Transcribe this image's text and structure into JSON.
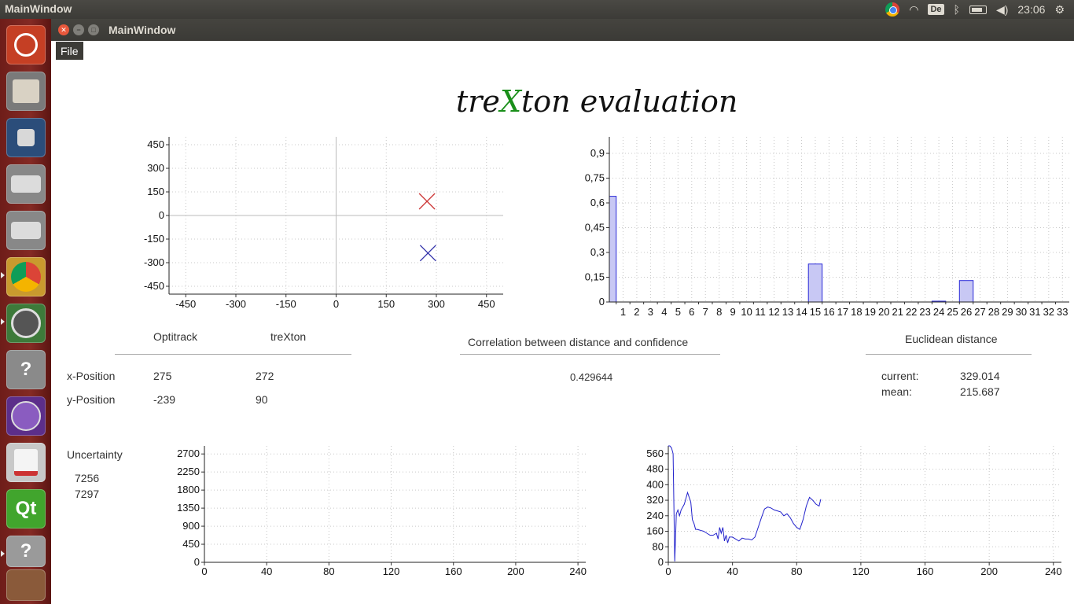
{
  "system": {
    "app_title": "MainWindow",
    "keyboard_layout": "De",
    "clock": "23:06"
  },
  "window": {
    "title": "MainWindow"
  },
  "menu": {
    "file": "File"
  },
  "heading": {
    "part1": "tre",
    "part2": "X",
    "part3": "ton evaluation"
  },
  "table": {
    "col1": "Optitrack",
    "col2": "treXton",
    "x_label": "x-Position",
    "y_label": "y-Position",
    "opti_x": "275",
    "opti_y": "-239",
    "trex_x": "272",
    "trex_y": "90"
  },
  "correlation": {
    "label": "Correlation between distance and confidence",
    "value": "0.429644"
  },
  "euclid": {
    "title": "Euclidean distance",
    "current_label": "current:",
    "current_value": "329.014",
    "mean_label": "mean:",
    "mean_value": "215.687"
  },
  "uncertainty": {
    "label": "Uncertainty",
    "v1": "7256",
    "v2": "7297"
  },
  "chart_data": [
    {
      "type": "scatter",
      "xlim": [
        -500,
        500
      ],
      "ylim": [
        -500,
        500
      ],
      "xticks": [
        -450,
        -300,
        -150,
        0,
        150,
        300,
        450
      ],
      "yticks": [
        450,
        300,
        150,
        0,
        -150,
        -300,
        -450
      ],
      "grid": true,
      "series": [
        {
          "color": "#cc3333",
          "marker": "x",
          "points": [
            [
              272,
              90
            ]
          ]
        },
        {
          "color": "#3333aa",
          "marker": "x",
          "points": [
            [
              275,
              -239
            ]
          ]
        }
      ]
    },
    {
      "type": "bar",
      "categories": [
        "1",
        "2",
        "3",
        "4",
        "5",
        "6",
        "7",
        "8",
        "9",
        "10",
        "11",
        "12",
        "13",
        "14",
        "15",
        "16",
        "17",
        "18",
        "19",
        "20",
        "21",
        "22",
        "23",
        "24",
        "25",
        "26",
        "27",
        "28",
        "29",
        "30",
        "31",
        "32",
        "33"
      ],
      "values": [
        0.64,
        0,
        0,
        0,
        0,
        0,
        0,
        0,
        0,
        0,
        0,
        0,
        0,
        0,
        0,
        0.23,
        0,
        0,
        0,
        0,
        0,
        0,
        0,
        0,
        0.005,
        0,
        0.13,
        0,
        0,
        0,
        0,
        0,
        0
      ],
      "ylim": [
        0,
        1
      ],
      "yticks": [
        "0,9",
        "0,75",
        "0,6",
        "0,45",
        "0,3",
        "0,15",
        "0"
      ],
      "ytick_values": [
        0.9,
        0.75,
        0.6,
        0.45,
        0.3,
        0.15,
        0
      ],
      "grid": true,
      "color": "#3333cc"
    },
    {
      "type": "line",
      "xlim": [
        0,
        245
      ],
      "ylim": [
        0,
        2900
      ],
      "xticks": [
        0,
        40,
        80,
        120,
        160,
        200,
        240
      ],
      "yticks": [
        2700,
        2250,
        1800,
        1350,
        900,
        450,
        0
      ],
      "grid": true,
      "series": []
    },
    {
      "type": "line",
      "xlim": [
        0,
        245
      ],
      "ylim": [
        0,
        600
      ],
      "xticks": [
        0,
        40,
        80,
        120,
        160,
        200,
        240
      ],
      "yticks": [
        560,
        480,
        400,
        320,
        240,
        160,
        80,
        0
      ],
      "grid": true,
      "color": "#2222cc",
      "x": [
        0,
        1,
        2,
        3,
        4,
        5,
        6,
        7,
        8,
        10,
        12,
        14,
        15,
        16,
        17,
        18,
        20,
        22,
        24,
        26,
        28,
        30,
        31,
        32,
        33,
        34,
        35,
        36,
        37,
        38,
        40,
        42,
        44,
        46,
        48,
        50,
        52,
        54,
        56,
        58,
        60,
        62,
        64,
        66,
        68,
        70,
        72,
        74,
        76,
        78,
        80,
        82,
        84,
        86,
        88,
        90,
        92,
        94,
        95
      ],
      "y": [
        600,
        600,
        590,
        560,
        5,
        250,
        270,
        240,
        270,
        300,
        360,
        310,
        220,
        200,
        170,
        170,
        165,
        160,
        150,
        140,
        140,
        150,
        120,
        180,
        150,
        180,
        110,
        140,
        100,
        130,
        130,
        120,
        110,
        125,
        120,
        120,
        115,
        130,
        180,
        230,
        275,
        285,
        280,
        270,
        265,
        260,
        240,
        250,
        230,
        200,
        180,
        170,
        220,
        290,
        335,
        320,
        300,
        290,
        325
      ]
    }
  ]
}
